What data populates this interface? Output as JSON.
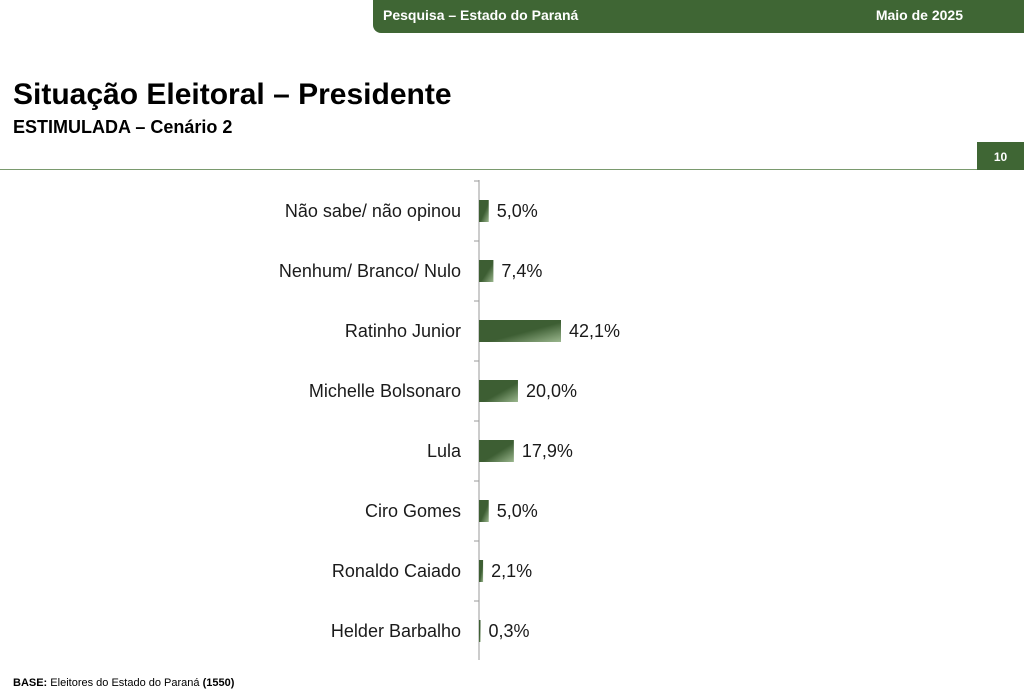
{
  "header": {
    "left": "Pesquisa – Estado do Paraná",
    "right": "Maio de 2025"
  },
  "title": "Situação Eleitoral – Presidente",
  "subtitle": "ESTIMULADA – Cenário 2",
  "page_number": "10",
  "footer": {
    "base_label": "BASE:",
    "base_text": "Eleitores do Estado do Paraná",
    "base_count": "(1550)"
  },
  "colors": {
    "brand": "#3f6634",
    "bar_dark": "#3d5e33",
    "bar_light": "#9bb78e"
  },
  "chart_data": {
    "type": "bar",
    "orientation": "horizontal",
    "categories": [
      "Não sabe/ não opinou",
      "Nenhum/ Branco/ Nulo",
      "Ratinho Junior",
      "Michelle Bolsonaro",
      "Lula",
      "Ciro Gomes",
      "Ronaldo Caiado",
      "Helder Barbalho"
    ],
    "values": [
      5.0,
      7.4,
      42.1,
      20.0,
      17.9,
      5.0,
      2.1,
      0.3
    ],
    "value_labels": [
      "5,0%",
      "7,4%",
      "42,1%",
      "20,0%",
      "17,9%",
      "5,0%",
      "2,1%",
      "0,3%"
    ],
    "xlim": [
      0,
      42.1
    ],
    "grid": false,
    "legend": "none"
  }
}
